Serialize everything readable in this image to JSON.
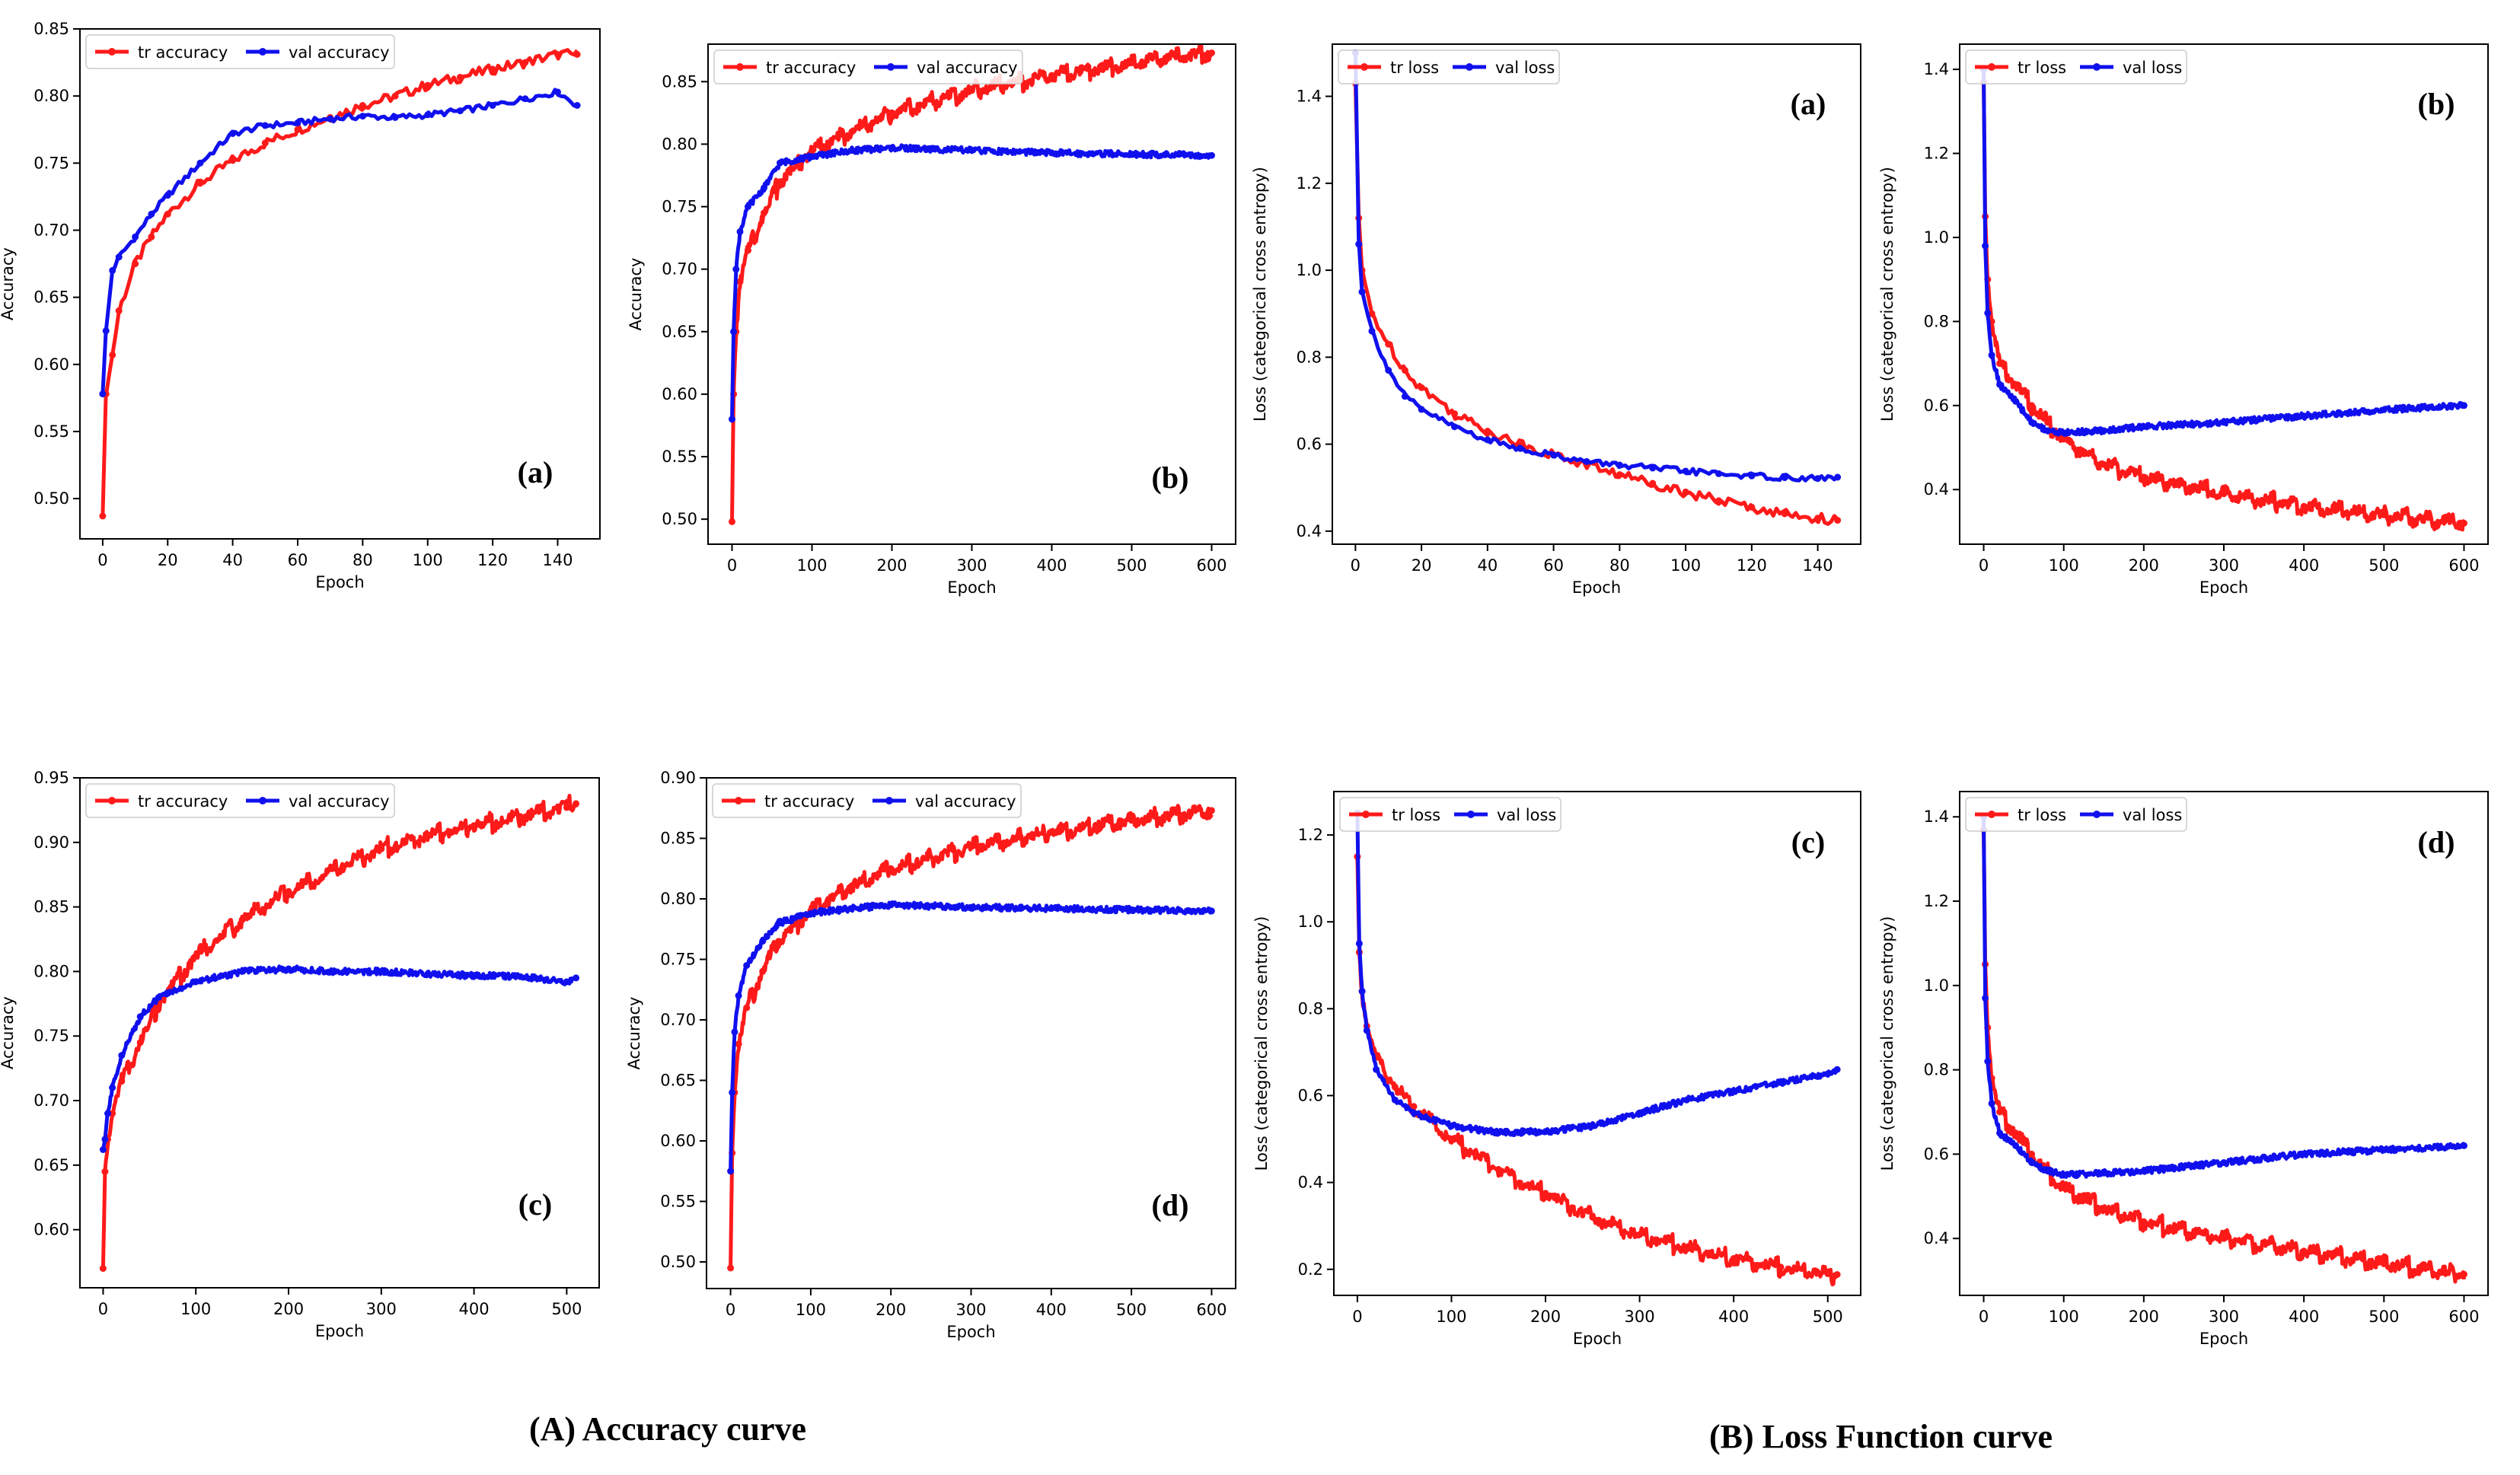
{
  "figure": {
    "captions": {
      "left": "(A) Accuracy curve",
      "right": "(B) Loss Function curve"
    }
  },
  "colors": {
    "train": "#ff1a1a",
    "val": "#1010ee"
  },
  "chart_data": [
    {
      "id": "acc-a",
      "type": "line",
      "panel_label": "(a)",
      "xlabel": "Epoch",
      "ylabel": "Accuracy",
      "xlim": [
        -7,
        153
      ],
      "ylim": [
        0.47,
        0.85
      ],
      "xticks": [
        0,
        20,
        40,
        60,
        80,
        100,
        120,
        140
      ],
      "yticks": [
        0.5,
        0.55,
        0.6,
        0.65,
        0.7,
        0.75,
        0.8,
        0.85
      ],
      "ytick_decimals": 2,
      "legend": [
        "tr accuracy",
        "val accuracy"
      ],
      "series": [
        {
          "name": "tr accuracy",
          "x": [
            0,
            1,
            3,
            5,
            10,
            15,
            20,
            30,
            40,
            50,
            60,
            70,
            80,
            90,
            100,
            110,
            120,
            130,
            140,
            146
          ],
          "values": [
            0.487,
            0.578,
            0.607,
            0.64,
            0.675,
            0.695,
            0.712,
            0.735,
            0.752,
            0.765,
            0.775,
            0.784,
            0.793,
            0.8,
            0.808,
            0.814,
            0.82,
            0.825,
            0.831,
            0.831
          ]
        },
        {
          "name": "val accuracy",
          "x": [
            0,
            1,
            3,
            5,
            10,
            15,
            20,
            30,
            40,
            50,
            60,
            70,
            80,
            90,
            100,
            110,
            120,
            130,
            140,
            146
          ],
          "values": [
            0.578,
            0.625,
            0.67,
            0.68,
            0.695,
            0.712,
            0.726,
            0.75,
            0.772,
            0.778,
            0.78,
            0.783,
            0.785,
            0.784,
            0.786,
            0.789,
            0.793,
            0.798,
            0.803,
            0.793
          ]
        }
      ]
    },
    {
      "id": "acc-b",
      "type": "line",
      "panel_label": "(b)",
      "xlabel": "Epoch",
      "ylabel": "Accuracy",
      "xlim": [
        -30,
        630
      ],
      "ylim": [
        0.48,
        0.88
      ],
      "xticks": [
        0,
        100,
        200,
        300,
        400,
        500,
        600
      ],
      "yticks": [
        0.5,
        0.55,
        0.6,
        0.65,
        0.7,
        0.75,
        0.8,
        0.85
      ],
      "ytick_decimals": 2,
      "legend": [
        "tr accuracy",
        "val accuracy"
      ],
      "series": [
        {
          "name": "tr accuracy",
          "x": [
            0,
            2,
            5,
            10,
            20,
            40,
            60,
            100,
            150,
            200,
            300,
            400,
            500,
            600
          ],
          "values": [
            0.498,
            0.6,
            0.65,
            0.69,
            0.715,
            0.745,
            0.77,
            0.795,
            0.81,
            0.825,
            0.843,
            0.855,
            0.865,
            0.873
          ]
        },
        {
          "name": "val accuracy",
          "x": [
            0,
            2,
            5,
            10,
            20,
            40,
            60,
            100,
            150,
            200,
            300,
            400,
            500,
            600
          ],
          "values": [
            0.58,
            0.65,
            0.7,
            0.73,
            0.75,
            0.765,
            0.785,
            0.79,
            0.795,
            0.797,
            0.795,
            0.793,
            0.792,
            0.791
          ]
        }
      ]
    },
    {
      "id": "loss-a",
      "type": "line",
      "panel_label": "(a)",
      "xlabel": "Epoch",
      "ylabel": "Loss (categorical cross entropy)",
      "xlim": [
        -7,
        153
      ],
      "ylim": [
        0.37,
        1.52
      ],
      "xticks": [
        0,
        20,
        40,
        60,
        80,
        100,
        120,
        140
      ],
      "yticks": [
        0.4,
        0.6,
        0.8,
        1.0,
        1.2,
        1.4
      ],
      "ytick_decimals": 1,
      "legend": [
        "tr loss",
        "val loss"
      ],
      "series": [
        {
          "name": "tr loss",
          "x": [
            0,
            1,
            2,
            5,
            10,
            15,
            20,
            30,
            40,
            50,
            60,
            70,
            80,
            90,
            100,
            110,
            120,
            130,
            140,
            146
          ],
          "values": [
            1.43,
            1.12,
            1.0,
            0.9,
            0.83,
            0.77,
            0.73,
            0.67,
            0.63,
            0.6,
            0.575,
            0.553,
            0.53,
            0.51,
            0.49,
            0.47,
            0.455,
            0.44,
            0.43,
            0.425
          ]
        },
        {
          "name": "val loss",
          "x": [
            0,
            1,
            2,
            5,
            10,
            15,
            20,
            30,
            40,
            50,
            60,
            70,
            80,
            90,
            100,
            110,
            120,
            130,
            140,
            146
          ],
          "values": [
            1.5,
            1.06,
            0.95,
            0.86,
            0.77,
            0.71,
            0.68,
            0.64,
            0.61,
            0.59,
            0.575,
            0.56,
            0.552,
            0.545,
            0.538,
            0.532,
            0.527,
            0.523,
            0.521,
            0.524
          ]
        }
      ]
    },
    {
      "id": "loss-b",
      "type": "line",
      "panel_label": "(b)",
      "xlabel": "Epoch",
      "ylabel": "Loss (categorical cross entropy)",
      "xlim": [
        -30,
        630
      ],
      "ylim": [
        0.27,
        1.46
      ],
      "xticks": [
        0,
        100,
        200,
        300,
        400,
        500,
        600
      ],
      "yticks": [
        0.4,
        0.6,
        0.8,
        1.0,
        1.2,
        1.4
      ],
      "ytick_decimals": 1,
      "legend": [
        "tr loss",
        "val loss"
      ],
      "series": [
        {
          "name": "tr loss",
          "x": [
            0,
            2,
            5,
            10,
            20,
            40,
            60,
            80,
            100,
            150,
            200,
            300,
            400,
            500,
            600
          ],
          "values": [
            1.37,
            1.05,
            0.9,
            0.8,
            0.7,
            0.65,
            0.6,
            0.56,
            0.52,
            0.46,
            0.43,
            0.39,
            0.36,
            0.34,
            0.32
          ]
        },
        {
          "name": "val loss",
          "x": [
            0,
            2,
            5,
            10,
            20,
            40,
            60,
            80,
            100,
            150,
            200,
            300,
            400,
            500,
            600
          ],
          "values": [
            1.4,
            0.98,
            0.82,
            0.72,
            0.65,
            0.61,
            0.56,
            0.54,
            0.535,
            0.54,
            0.55,
            0.56,
            0.575,
            0.59,
            0.6
          ]
        }
      ]
    },
    {
      "id": "acc-c",
      "type": "line",
      "panel_label": "(c)",
      "xlabel": "Epoch",
      "ylabel": "Accuracy",
      "xlim": [
        -25,
        535
      ],
      "ylim": [
        0.555,
        0.95
      ],
      "xticks": [
        0,
        100,
        200,
        300,
        400,
        500
      ],
      "yticks": [
        0.6,
        0.65,
        0.7,
        0.75,
        0.8,
        0.85,
        0.9,
        0.95
      ],
      "ytick_decimals": 2,
      "legend": [
        "tr accuracy",
        "val accuracy"
      ],
      "series": [
        {
          "name": "tr accuracy",
          "x": [
            0,
            2,
            5,
            10,
            20,
            40,
            60,
            100,
            150,
            200,
            250,
            300,
            350,
            400,
            450,
            500,
            510
          ],
          "values": [
            0.57,
            0.645,
            0.67,
            0.69,
            0.715,
            0.745,
            0.775,
            0.812,
            0.84,
            0.862,
            0.88,
            0.895,
            0.905,
            0.913,
            0.92,
            0.927,
            0.93
          ]
        },
        {
          "name": "val accuracy",
          "x": [
            0,
            2,
            5,
            10,
            20,
            40,
            60,
            100,
            150,
            200,
            250,
            300,
            350,
            400,
            450,
            500,
            510
          ],
          "values": [
            0.662,
            0.67,
            0.69,
            0.71,
            0.735,
            0.765,
            0.78,
            0.792,
            0.8,
            0.802,
            0.8,
            0.8,
            0.798,
            0.797,
            0.796,
            0.792,
            0.795
          ]
        }
      ]
    },
    {
      "id": "acc-d",
      "type": "line",
      "panel_label": "(d)",
      "xlabel": "Epoch",
      "ylabel": "Accuracy",
      "xlim": [
        -30,
        630
      ],
      "ylim": [
        0.478,
        0.9
      ],
      "xticks": [
        0,
        100,
        200,
        300,
        400,
        500,
        600
      ],
      "yticks": [
        0.5,
        0.55,
        0.6,
        0.65,
        0.7,
        0.75,
        0.8,
        0.85,
        0.9
      ],
      "ytick_decimals": 2,
      "legend": [
        "tr accuracy",
        "val accuracy"
      ],
      "series": [
        {
          "name": "tr accuracy",
          "x": [
            0,
            2,
            5,
            10,
            20,
            40,
            60,
            100,
            150,
            200,
            300,
            400,
            500,
            600
          ],
          "values": [
            0.495,
            0.59,
            0.64,
            0.68,
            0.71,
            0.74,
            0.765,
            0.79,
            0.81,
            0.825,
            0.843,
            0.855,
            0.865,
            0.873
          ]
        },
        {
          "name": "val accuracy",
          "x": [
            0,
            2,
            5,
            10,
            20,
            40,
            60,
            100,
            150,
            200,
            300,
            400,
            500,
            600
          ],
          "values": [
            0.575,
            0.64,
            0.69,
            0.72,
            0.745,
            0.765,
            0.78,
            0.788,
            0.792,
            0.795,
            0.793,
            0.792,
            0.791,
            0.79
          ]
        }
      ]
    },
    {
      "id": "loss-c",
      "type": "line",
      "panel_label": "(c)",
      "xlabel": "Epoch",
      "ylabel": "Loss (categorical cross entropy)",
      "xlim": [
        -25,
        535
      ],
      "ylim": [
        0.14,
        1.3
      ],
      "xticks": [
        0,
        100,
        200,
        300,
        400,
        500
      ],
      "yticks": [
        0.2,
        0.4,
        0.6,
        0.8,
        1.0,
        1.2
      ],
      "ytick_decimals": 1,
      "legend": [
        "tr loss",
        "val loss"
      ],
      "series": [
        {
          "name": "tr loss",
          "x": [
            0,
            2,
            5,
            10,
            20,
            40,
            60,
            100,
            150,
            200,
            250,
            300,
            350,
            400,
            450,
            500,
            510
          ],
          "values": [
            1.15,
            0.93,
            0.84,
            0.76,
            0.69,
            0.62,
            0.575,
            0.5,
            0.43,
            0.375,
            0.32,
            0.28,
            0.25,
            0.225,
            0.205,
            0.19,
            0.188
          ]
        },
        {
          "name": "val loss",
          "x": [
            0,
            2,
            5,
            10,
            20,
            40,
            60,
            100,
            150,
            200,
            250,
            300,
            350,
            400,
            450,
            500,
            510
          ],
          "values": [
            1.25,
            0.95,
            0.84,
            0.75,
            0.66,
            0.59,
            0.56,
            0.53,
            0.515,
            0.517,
            0.53,
            0.56,
            0.59,
            0.61,
            0.63,
            0.65,
            0.66
          ]
        }
      ]
    },
    {
      "id": "loss-d",
      "type": "line",
      "panel_label": "(d)",
      "xlabel": "Epoch",
      "ylabel": "Loss (categorical cross entropy)",
      "xlim": [
        -30,
        630
      ],
      "ylim": [
        0.265,
        1.46
      ],
      "xticks": [
        0,
        100,
        200,
        300,
        400,
        500,
        600
      ],
      "yticks": [
        0.4,
        0.6,
        0.8,
        1.0,
        1.2,
        1.4
      ],
      "ytick_decimals": 1,
      "legend": [
        "tr loss",
        "val loss"
      ],
      "series": [
        {
          "name": "tr loss",
          "x": [
            0,
            2,
            5,
            10,
            20,
            40,
            60,
            80,
            100,
            150,
            200,
            300,
            400,
            500,
            600
          ],
          "values": [
            1.37,
            1.05,
            0.9,
            0.78,
            0.7,
            0.65,
            0.6,
            0.56,
            0.52,
            0.47,
            0.44,
            0.4,
            0.37,
            0.34,
            0.315
          ]
        },
        {
          "name": "val loss",
          "x": [
            0,
            2,
            5,
            10,
            20,
            40,
            60,
            80,
            100,
            150,
            200,
            300,
            400,
            500,
            600
          ],
          "values": [
            1.4,
            0.97,
            0.82,
            0.72,
            0.65,
            0.62,
            0.58,
            0.56,
            0.55,
            0.555,
            0.56,
            0.58,
            0.6,
            0.61,
            0.62
          ]
        }
      ]
    }
  ]
}
